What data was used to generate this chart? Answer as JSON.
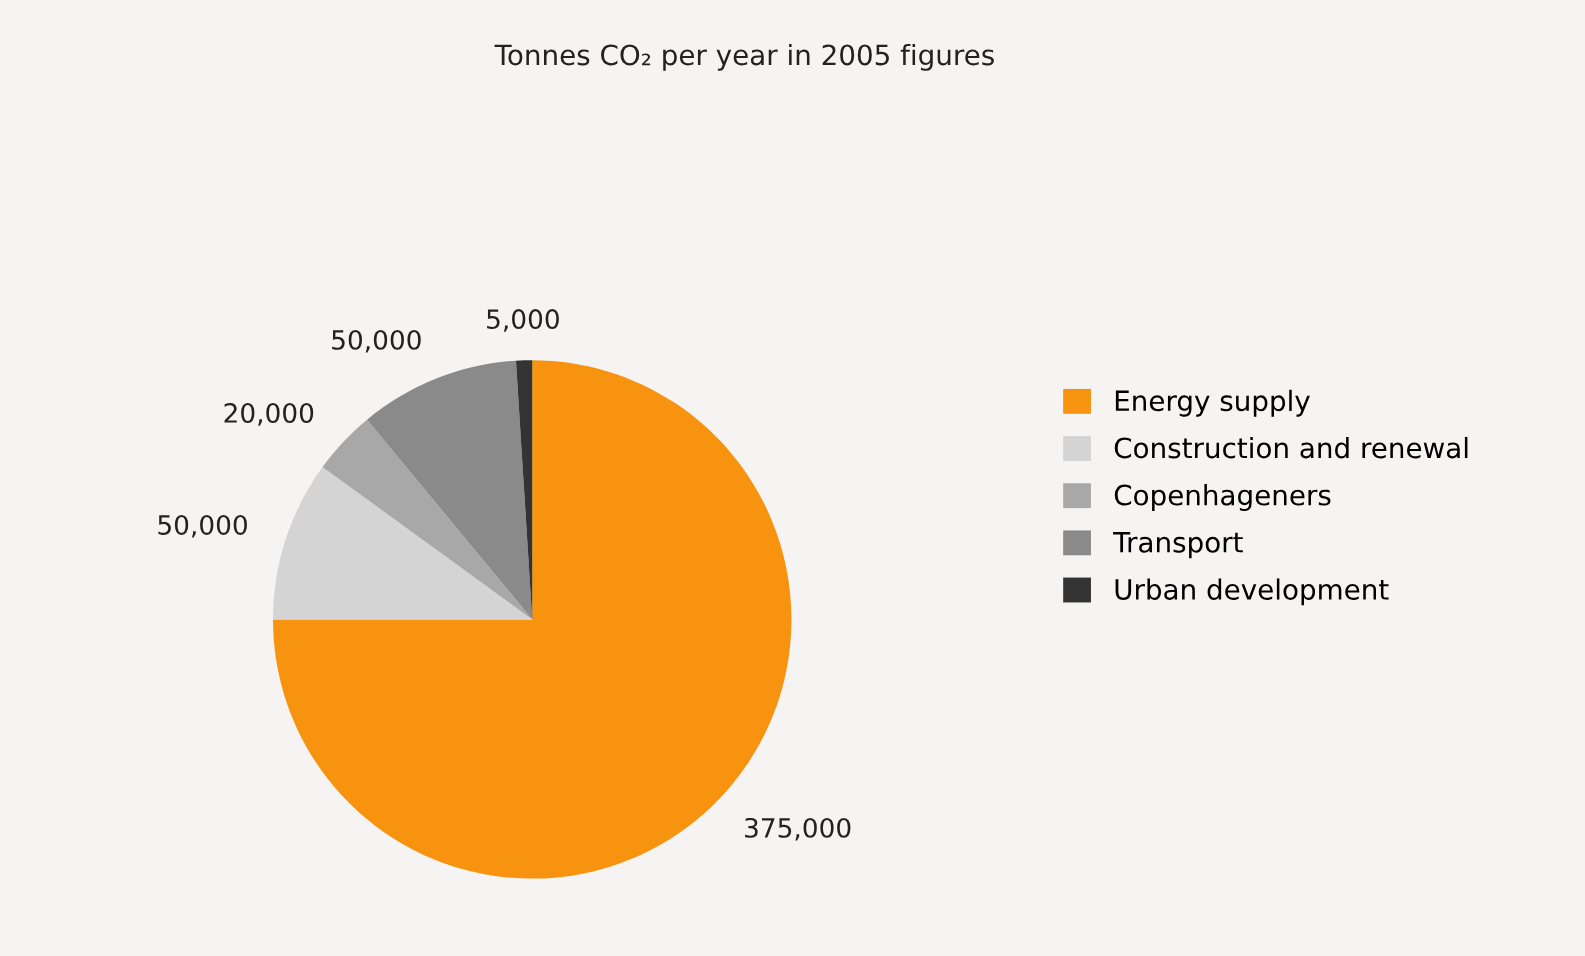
{
  "chart_data": {
    "type": "pie",
    "title": "Tonnes CO₂ per year in 2005 figures",
    "categories": [
      "Energy supply",
      "Construction and renewal",
      "Copenhageners",
      "Transport",
      "Urban development"
    ],
    "values": [
      375000,
      50000,
      20000,
      50000,
      5000
    ],
    "value_labels": [
      "375,000",
      "50,000",
      "20,000",
      "50,000",
      "5,000"
    ],
    "colors": [
      "#f7930f",
      "#d4d4d4",
      "#a8a8a8",
      "#8a8a8a",
      "#333333"
    ],
    "legend": "right"
  }
}
